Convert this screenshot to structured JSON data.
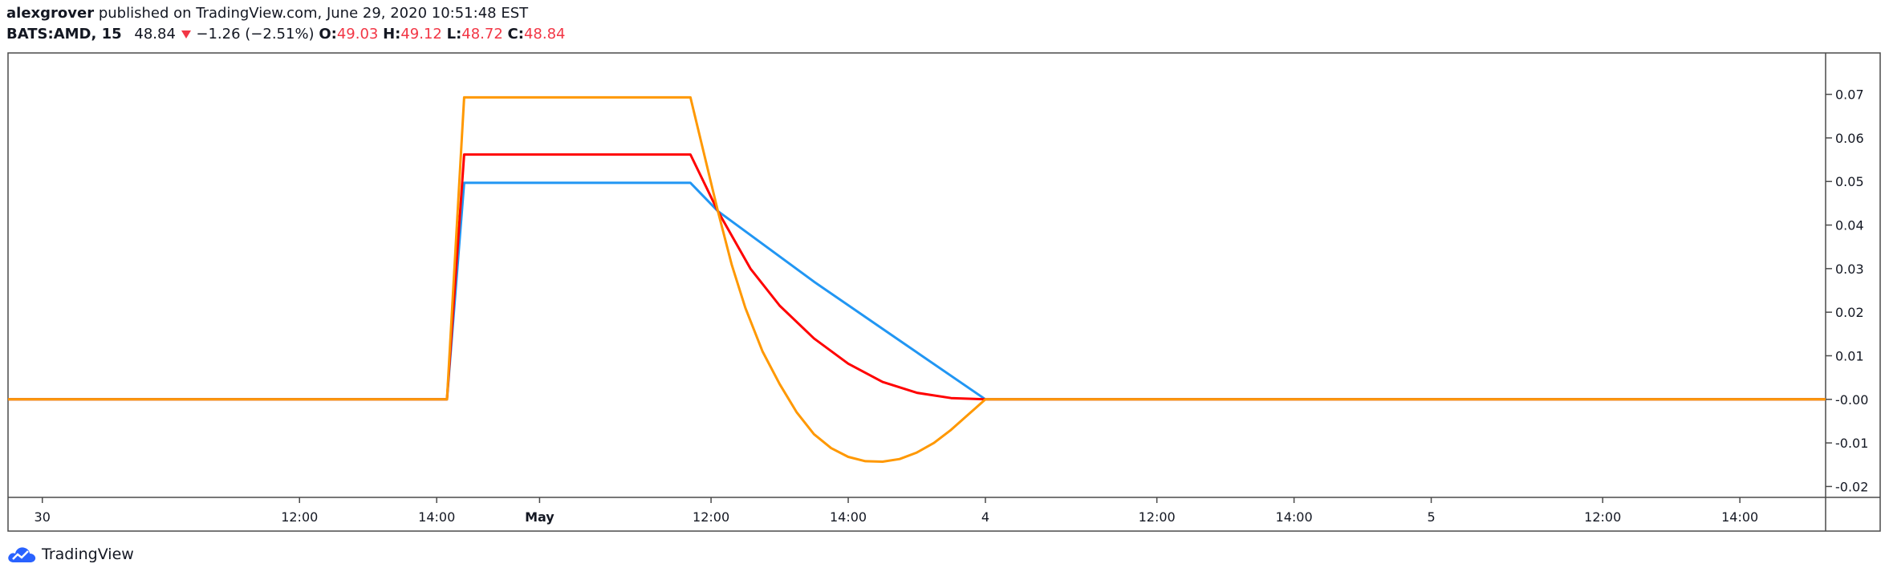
{
  "header": {
    "author": "alexgrover",
    "published_text": "published on TradingView.com, June 29, 2020 10:51:48 EST",
    "symbol": "BATS:AMD, 15",
    "price": "48.84",
    "change": "−1.26 (−2.51%)",
    "open_label": "O:",
    "open": "49.03",
    "high_label": "H:",
    "high": "49.12",
    "low_label": "L:",
    "low": "48.72",
    "close_label": "C:",
    "close": "48.84",
    "down_icon": "triangle-down-icon"
  },
  "footer": {
    "brand": "TradingView",
    "logo_icon": "cloud-logo-icon"
  },
  "colors": {
    "blue": "#2196f3",
    "red": "#ff0000",
    "orange": "#ff9800",
    "down": "#f23645"
  },
  "chart_data": {
    "type": "line",
    "x_tick_labels": [
      "30",
      "12:00",
      "14:00",
      "May",
      "12:00",
      "14:00",
      "4",
      "12:00",
      "14:00",
      "5",
      "12:00",
      "14:00"
    ],
    "x_tick_index": [
      0,
      15,
      23,
      29,
      39,
      47,
      55,
      65,
      73,
      81,
      91,
      99
    ],
    "x_range": [
      -2,
      104
    ],
    "y_ticks": [
      "0.07",
      "0.06",
      "0.05",
      "0.04",
      "0.03",
      "0.02",
      "0.01",
      "-0.00",
      "-0.01",
      "-0.02"
    ],
    "y_tick_values": [
      0.07,
      0.06,
      0.05,
      0.04,
      0.03,
      0.02,
      0.01,
      0,
      -0.01,
      -0.02
    ],
    "ylim": [
      -0.0225,
      0.0795
    ],
    "grid": false,
    "series": [
      {
        "color": "#2196f3",
        "x": [
          -2,
          23.6,
          24.6,
          37.8,
          39.4,
          45.0,
          50.0,
          55.0,
          104
        ],
        "y": [
          0,
          0,
          0.0497,
          0.0497,
          0.0432,
          0.027,
          0.0135,
          0,
          0
        ]
      },
      {
        "color": "#ff0000",
        "x": [
          -2,
          23.6,
          24.6,
          37.8,
          39.4,
          41.3,
          43.0,
          45.0,
          47.0,
          49.0,
          51.0,
          53.0,
          55.0,
          104
        ],
        "y": [
          0,
          0,
          0.0562,
          0.0562,
          0.0432,
          0.03,
          0.0215,
          0.014,
          0.0082,
          0.004,
          0.0015,
          0.0003,
          0,
          0
        ]
      },
      {
        "color": "#ff9800",
        "x": [
          -2,
          23.6,
          24.6,
          37.8,
          39.4,
          40.2,
          41.0,
          42.0,
          43.0,
          44.0,
          45.0,
          46.0,
          47.0,
          48.0,
          49.0,
          50.0,
          51.0,
          52.0,
          53.0,
          54.0,
          55.0,
          104
        ],
        "y": [
          0,
          0,
          0.0693,
          0.0693,
          0.0432,
          0.031,
          0.021,
          0.011,
          0.0035,
          -0.003,
          -0.008,
          -0.0112,
          -0.0132,
          -0.0142,
          -0.0143,
          -0.0137,
          -0.0122,
          -0.01,
          -0.007,
          -0.0035,
          0,
          0
        ]
      }
    ]
  }
}
